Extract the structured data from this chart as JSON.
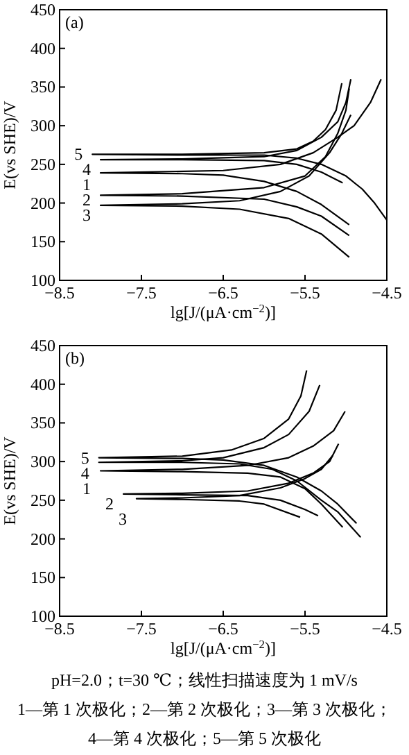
{
  "chart_data": [
    {
      "type": "line",
      "title": "(a)",
      "xlabel": "lg[J/(μA·cm$^{−2}$)]",
      "ylabel": "E(vs SHE)/V",
      "xlim": [
        -8.5,
        -4.5
      ],
      "ylim": [
        100,
        450
      ],
      "xticks": [
        {
          "value": -8.5,
          "label": "−8.5"
        },
        {
          "value": -7.5,
          "label": "−7.5"
        },
        {
          "value": -6.5,
          "label": "−6.5"
        },
        {
          "value": -5.5,
          "label": "−5.5"
        },
        {
          "value": -4.5,
          "label": "−4.5"
        }
      ],
      "yticks": [
        100,
        150,
        200,
        250,
        300,
        350,
        400,
        450
      ],
      "series": [
        {
          "name": "5",
          "color": "#000000",
          "x": [
            -5.05,
            -5.12,
            -5.25,
            -5.4,
            -5.6,
            -6.0,
            -7.0,
            -8.1,
            -7.0,
            -6.0,
            -5.6,
            -5.3,
            -5.0,
            -4.8,
            -4.65,
            -4.5
          ],
          "values": [
            355,
            320,
            295,
            280,
            270,
            265,
            263,
            263,
            262,
            262,
            258,
            250,
            235,
            218,
            200,
            178
          ]
        },
        {
          "name": "4",
          "color": "#000000",
          "x": [
            -4.94,
            -5.0,
            -5.1,
            -5.3,
            -5.6,
            -6.0,
            -7.0,
            -8.0,
            -7.0,
            -6.0,
            -5.6,
            -5.3,
            -5.04
          ],
          "values": [
            360,
            330,
            305,
            285,
            268,
            260,
            257,
            256,
            256,
            255,
            250,
            240,
            226
          ]
        },
        {
          "name": "1",
          "color": "#000000",
          "x": [
            -4.57,
            -4.7,
            -4.9,
            -5.1,
            -5.4,
            -5.8,
            -6.5,
            -8.0,
            -7.0,
            -6.5,
            -6.0,
            -5.6,
            -5.3,
            -4.96
          ],
          "values": [
            360,
            330,
            300,
            285,
            265,
            250,
            242,
            239,
            238,
            236,
            228,
            215,
            198,
            172
          ]
        },
        {
          "name": "2",
          "color": "#000000",
          "x": [
            -4.96,
            -5.0,
            -5.1,
            -5.25,
            -5.5,
            -6.0,
            -7.0,
            -8.0,
            -7.0,
            -6.0,
            -5.6,
            -5.3,
            -4.96
          ],
          "values": [
            348,
            320,
            290,
            260,
            235,
            220,
            212,
            210,
            209,
            205,
            195,
            183,
            158
          ]
        },
        {
          "name": "3",
          "color": "#000000",
          "x": [
            -4.94,
            -5.05,
            -5.2,
            -5.45,
            -5.8,
            -6.3,
            -7.0,
            -8.0,
            -7.0,
            -6.3,
            -5.7,
            -5.3,
            -4.96
          ],
          "values": [
            314,
            290,
            265,
            235,
            215,
            203,
            199,
            197,
            196,
            192,
            180,
            160,
            130
          ]
        }
      ]
    },
    {
      "type": "line",
      "title": "(b)",
      "xlabel": "lg[J/(μA·cm$^{−2}$)]",
      "ylabel": "E(vs SHE)/V",
      "xlim": [
        -8.5,
        -4.5
      ],
      "ylim": [
        100,
        450
      ],
      "xticks": [
        {
          "value": -8.5,
          "label": "−8.5"
        },
        {
          "value": -7.5,
          "label": "−7.5"
        },
        {
          "value": -6.5,
          "label": "−6.5"
        },
        {
          "value": -5.5,
          "label": "−5.5"
        },
        {
          "value": -4.5,
          "label": "−4.5"
        }
      ],
      "yticks": [
        100,
        150,
        200,
        250,
        300,
        350,
        400,
        450
      ],
      "series": [
        {
          "name": "5",
          "color": "#000000",
          "x": [
            -5.48,
            -5.55,
            -5.7,
            -6.0,
            -6.4,
            -7.0,
            -8.02,
            -7.0,
            -6.5,
            -6.0,
            -5.6,
            -5.3,
            -5.1,
            -4.87
          ],
          "values": [
            418,
            385,
            355,
            330,
            315,
            307,
            305,
            304,
            302,
            295,
            280,
            262,
            245,
            220
          ]
        },
        {
          "name": "4",
          "color": "#000000",
          "x": [
            -5.32,
            -5.45,
            -5.7,
            -6.0,
            -6.5,
            -7.0,
            -8.02,
            -7.0,
            -6.3,
            -5.9,
            -5.6,
            -5.3,
            -5.1,
            -4.82
          ],
          "values": [
            399,
            365,
            335,
            318,
            305,
            301,
            299,
            299,
            297,
            290,
            275,
            250,
            235,
            202
          ]
        },
        {
          "name": "1",
          "color": "#000000",
          "x": [
            -5.01,
            -5.15,
            -5.4,
            -5.7,
            -6.2,
            -7.0,
            -8.0,
            -7.0,
            -6.2,
            -5.8,
            -5.5,
            -5.3,
            -5.04
          ],
          "values": [
            365,
            340,
            320,
            305,
            295,
            290,
            288,
            287,
            285,
            280,
            265,
            245,
            215
          ]
        },
        {
          "name": "2",
          "color": "#000000",
          "x": [
            -5.09,
            -5.2,
            -5.4,
            -5.7,
            -6.2,
            -7.0,
            -7.72,
            -7.0,
            -6.2,
            -5.8,
            -5.5,
            -5.34
          ],
          "values": [
            323,
            300,
            285,
            272,
            262,
            259,
            258,
            257,
            256,
            250,
            238,
            230
          ]
        },
        {
          "name": "3",
          "color": "#000000",
          "x": [
            -5.16,
            -5.3,
            -5.5,
            -5.8,
            -6.3,
            -7.0,
            -7.56,
            -7.0,
            -6.3,
            -6.0,
            -5.56
          ],
          "values": [
            308,
            290,
            278,
            266,
            256,
            253,
            252,
            251,
            249,
            245,
            228
          ]
        }
      ],
      "annotations": [
        "pH=2.0；t=30 ℃；线性扫描速度为 1 mV/s",
        "1—第 1 次极化；2—第 2 次极化；3—第 3 次极化；",
        "4—第 4 次极化；5—第 5 次极化"
      ]
    }
  ]
}
